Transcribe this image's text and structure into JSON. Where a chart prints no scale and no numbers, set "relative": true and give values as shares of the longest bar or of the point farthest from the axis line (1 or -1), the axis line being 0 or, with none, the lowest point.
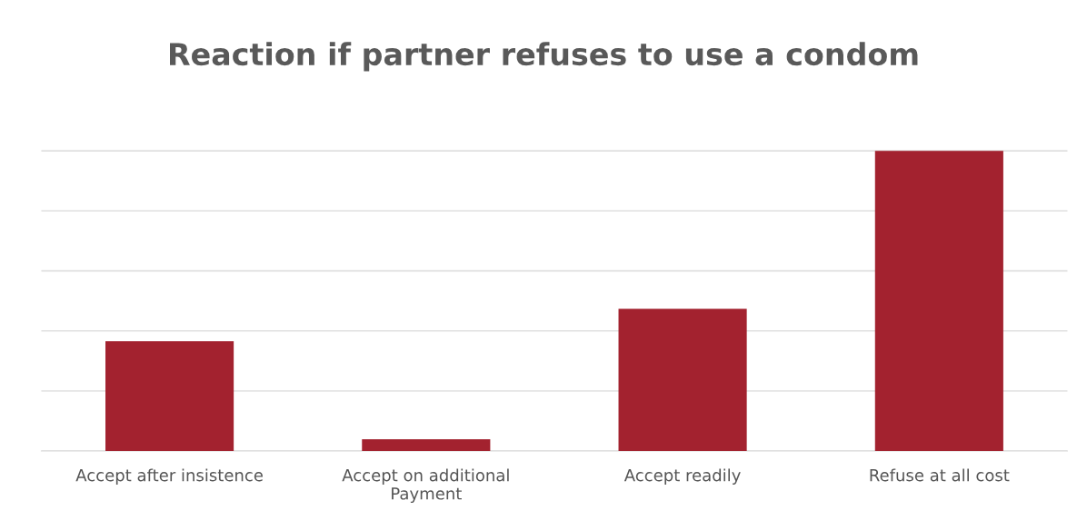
{
  "chart_data": {
    "type": "bar",
    "title": "Reaction if partner refuses to use a condom",
    "categories": [
      "Accept after insistence",
      "Accept on additional\nPayment",
      "Accept readily",
      "Refuse at all cost"
    ],
    "values": [
      0.366,
      0.039,
      0.474,
      1
    ],
    "color": "#a3222f",
    "relative": true,
    "grid": "y"
  }
}
